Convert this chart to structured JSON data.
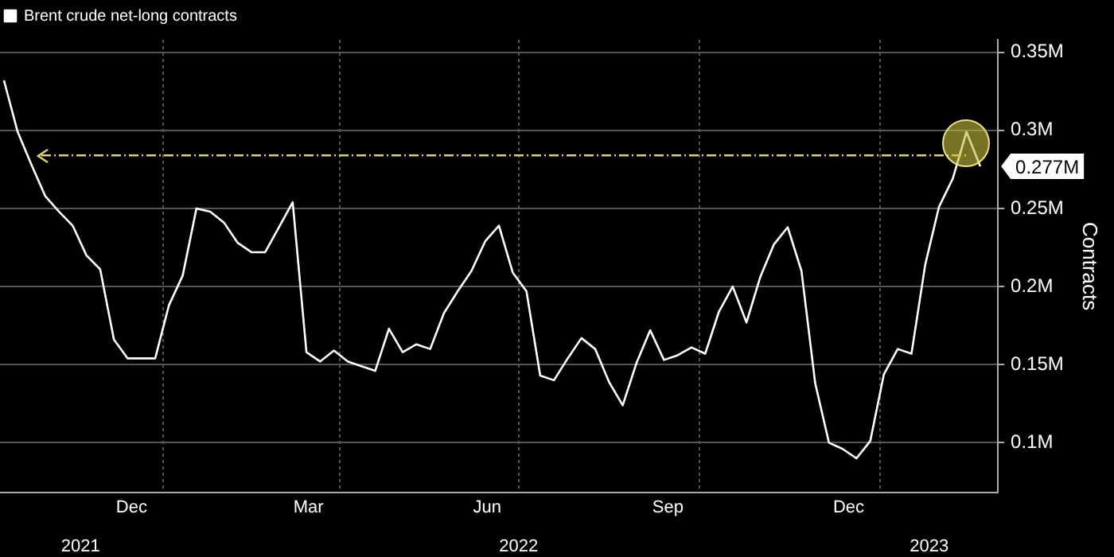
{
  "chart_data": {
    "type": "line",
    "ylabel": "Contracts",
    "legend": "top left",
    "grid": true,
    "x": [
      "2021-10-12",
      "2021-10-19",
      "2021-10-26",
      "2021-11-02",
      "2021-11-09",
      "2021-11-16",
      "2021-11-23",
      "2021-11-30",
      "2021-12-07",
      "2021-12-14",
      "2021-12-21",
      "2021-12-28",
      "2022-01-04",
      "2022-01-11",
      "2022-01-18",
      "2022-01-25",
      "2022-02-01",
      "2022-02-08",
      "2022-02-15",
      "2022-02-22",
      "2022-03-01",
      "2022-03-08",
      "2022-03-15",
      "2022-03-22",
      "2022-03-29",
      "2022-04-05",
      "2022-04-12",
      "2022-04-19",
      "2022-04-26",
      "2022-05-03",
      "2022-05-10",
      "2022-05-17",
      "2022-05-24",
      "2022-05-31",
      "2022-06-07",
      "2022-06-14",
      "2022-06-21",
      "2022-06-28",
      "2022-07-05",
      "2022-07-12",
      "2022-07-19",
      "2022-07-26",
      "2022-08-02",
      "2022-08-09",
      "2022-08-16",
      "2022-08-23",
      "2022-08-30",
      "2022-09-06",
      "2022-09-13",
      "2022-09-20",
      "2022-09-27",
      "2022-10-04",
      "2022-10-11",
      "2022-10-18",
      "2022-10-25",
      "2022-11-01",
      "2022-11-08",
      "2022-11-15",
      "2022-11-22",
      "2022-11-29",
      "2022-12-06",
      "2022-12-13",
      "2022-12-20",
      "2022-12-27",
      "2023-01-03",
      "2023-01-10",
      "2023-01-17",
      "2023-01-24",
      "2023-01-31",
      "2023-02-07",
      "2023-02-14",
      "2023-02-21"
    ],
    "series": [
      {
        "name": "Brent crude net-long contracts",
        "color": "#ffffff",
        "value_labels": [
          null,
          null,
          null,
          null,
          null,
          null,
          null,
          null,
          null,
          null,
          null,
          null,
          null,
          null,
          null,
          null,
          null,
          null,
          null,
          null,
          null,
          null,
          null,
          null,
          null,
          null,
          null,
          null,
          null,
          null,
          null,
          null,
          null,
          null,
          null,
          null,
          null,
          null,
          null,
          null,
          null,
          null,
          null,
          null,
          null,
          null,
          null,
          null,
          null,
          null,
          null,
          null,
          null,
          null,
          null,
          null,
          null,
          null,
          null,
          null,
          null,
          null,
          null,
          null,
          null,
          null,
          null,
          null,
          null,
          null,
          null,
          "0.277M"
        ],
        "values": [
          0.332,
          0.299,
          0.278,
          0.258,
          0.248,
          0.239,
          0.22,
          0.211,
          0.166,
          0.154,
          0.154,
          0.154,
          0.188,
          0.207,
          0.25,
          0.248,
          0.241,
          0.228,
          0.222,
          0.222,
          0.238,
          0.254,
          0.158,
          0.152,
          0.159,
          0.152,
          0.149,
          0.146,
          0.173,
          0.158,
          0.163,
          0.16,
          0.183,
          0.197,
          0.21,
          0.229,
          0.239,
          0.209,
          0.197,
          0.143,
          0.14,
          0.154,
          0.167,
          0.16,
          0.139,
          0.124,
          0.151,
          0.172,
          0.153,
          0.156,
          0.161,
          0.157,
          0.184,
          0.2,
          0.177,
          0.206,
          0.227,
          0.238,
          0.21,
          0.138,
          0.1,
          0.096,
          0.09,
          0.101,
          0.144,
          0.16,
          0.157,
          0.214,
          0.251,
          0.269,
          0.299,
          0.277
        ]
      }
    ],
    "xlim": [
      "2021-10-10",
      "2023-03-02"
    ],
    "xticks": [
      {
        "value": "2021-12-16",
        "label": "Dec"
      },
      {
        "value": "2022-01-01",
        "label": null
      },
      {
        "value": "2022-03-16",
        "label": "Mar"
      },
      {
        "value": "2022-04-01",
        "label": null
      },
      {
        "value": "2022-06-15",
        "label": "Jun"
      },
      {
        "value": "2022-07-01",
        "label": null
      },
      {
        "value": "2022-09-15",
        "label": "Sep"
      },
      {
        "value": "2022-10-01",
        "label": null
      },
      {
        "value": "2022-12-16",
        "label": "Dec"
      },
      {
        "value": "2023-01-01",
        "label": null
      }
    ],
    "x2lim": [
      "2021-10-10",
      "2023-03-02"
    ],
    "x2ticks": [
      {
        "value": "2021-11-20",
        "label": "2021"
      },
      {
        "value": "2022-07-01",
        "label": "2022"
      },
      {
        "value": "2023-01-26",
        "label": "2023"
      }
    ],
    "ylim": [
      0.068,
      0.358
    ],
    "yticks": [
      {
        "value": 0.1,
        "label": "0.1M"
      },
      {
        "value": 0.15,
        "label": "0.15M"
      },
      {
        "value": 0.2,
        "label": "0.2M"
      },
      {
        "value": 0.25,
        "label": "0.25M"
      },
      {
        "value": 0.3,
        "label": "0.3M"
      },
      {
        "value": 0.35,
        "label": "0.35M"
      }
    ],
    "ref_lines": [
      {
        "axis": "y",
        "value": 0.284,
        "color": "#d8d27c",
        "line_style": "dashed"
      }
    ]
  }
}
